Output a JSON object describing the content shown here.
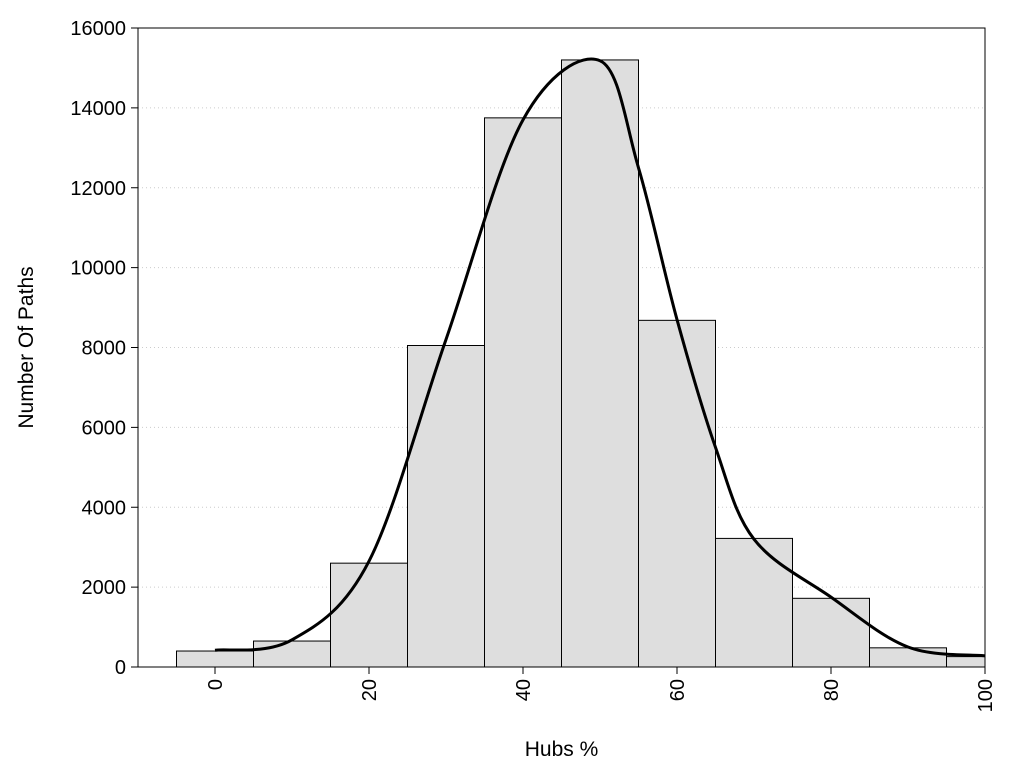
{
  "chart_data": {
    "type": "bar",
    "xlabel": "Hubs %",
    "ylabel": "Number Of Paths",
    "xlim": [
      -10,
      100
    ],
    "ylim": [
      0,
      16000
    ],
    "x_ticks": [
      0,
      20,
      40,
      60,
      80,
      100
    ],
    "y_ticks": [
      0,
      2000,
      4000,
      6000,
      8000,
      10000,
      12000,
      14000,
      16000
    ],
    "grid": "horizontal dotted",
    "bin_width": 10,
    "bars": [
      {
        "x": 0,
        "value": 400
      },
      {
        "x": 10,
        "value": 650
      },
      {
        "x": 20,
        "value": 2600
      },
      {
        "x": 30,
        "value": 8050
      },
      {
        "x": 40,
        "value": 13750
      },
      {
        "x": 50,
        "value": 15200
      },
      {
        "x": 60,
        "value": 8680
      },
      {
        "x": 70,
        "value": 3220
      },
      {
        "x": 80,
        "value": 1720
      },
      {
        "x": 90,
        "value": 480
      },
      {
        "x": 100,
        "value": 260
      }
    ],
    "curve": [
      {
        "x": 0,
        "y": 420
      },
      {
        "x": 10,
        "y": 680
      },
      {
        "x": 20,
        "y": 2650
      },
      {
        "x": 30,
        "y": 8200
      },
      {
        "x": 40,
        "y": 13700
      },
      {
        "x": 50,
        "y": 15180
      },
      {
        "x": 55,
        "y": 12500
      },
      {
        "x": 60,
        "y": 8700
      },
      {
        "x": 65,
        "y": 5500
      },
      {
        "x": 70,
        "y": 3200
      },
      {
        "x": 80,
        "y": 1750
      },
      {
        "x": 90,
        "y": 500
      },
      {
        "x": 100,
        "y": 280
      }
    ],
    "colors": {
      "bar_fill": "#dedede",
      "bar_stroke": "#000000",
      "curve": "#000000",
      "grid": "#cccccc"
    }
  }
}
